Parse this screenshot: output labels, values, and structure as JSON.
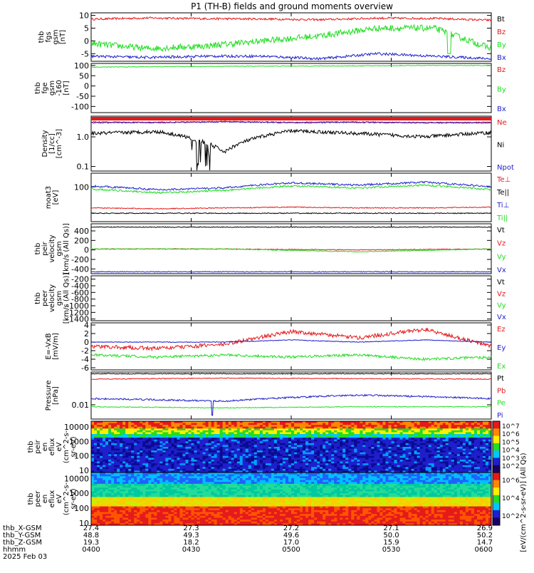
{
  "title": "P1 (TH-B) fields and ground moments overview",
  "colors": {
    "black": "#000000",
    "red": "#e41a1c",
    "green": "#22dd22",
    "blue": "#1f1fcc"
  },
  "chart_data": [
    {
      "type": "line",
      "ylabel": [
        "thb",
        "fgs",
        "gsm",
        "[nT]"
      ],
      "ylim": [
        -8,
        11
      ],
      "yticks": [
        "10",
        "5",
        "0",
        "-5"
      ],
      "yticks_values": [
        10,
        5,
        0,
        -5
      ],
      "series": [
        {
          "name": "Bt",
          "color": "#000000"
        },
        {
          "name": "Bz",
          "color": "#e41a1c",
          "values_approx": [
            8.5,
            9.0,
            8.7,
            8.6,
            8.3,
            8.9,
            8.8,
            8.1
          ]
        },
        {
          "name": "By",
          "color": "#22dd22",
          "values_approx": [
            -1,
            -3,
            -2,
            0,
            2,
            5,
            5,
            -3
          ]
        },
        {
          "name": "Bx",
          "color": "#1f1fcc",
          "values_approx": [
            -6,
            -6.5,
            -6,
            -6,
            -7,
            -5,
            -6,
            -7
          ]
        }
      ]
    },
    {
      "type": "line",
      "ylabel": [
        "thb",
        "fge",
        "gsm",
        "-160",
        "[nT]"
      ],
      "ylim": [
        -130,
        110
      ],
      "yticks": [
        "100",
        "50",
        "0",
        "-50",
        "-100"
      ],
      "yticks_values": [
        100,
        50,
        0,
        -50,
        -100
      ],
      "series": [
        {
          "name": "Bz",
          "color": "#e41a1c"
        },
        {
          "name": "By",
          "color": "#22dd22",
          "values_approx": [
            92,
            94,
            96,
            97,
            98,
            100,
            100
          ]
        },
        {
          "name": "Bx",
          "color": "#1f1fcc"
        }
      ]
    },
    {
      "type": "line",
      "yscale": "log",
      "ylabel": [
        "Density",
        "[1/cc]",
        "[cm^-3]"
      ],
      "ylim": [
        0.07,
        5
      ],
      "yticks": [
        "1.0",
        "0.1"
      ],
      "yticks_values": [
        1.0,
        0.1
      ],
      "series": [
        {
          "name": "Ne",
          "color": "#e41a1c",
          "values_approx": [
            3.2,
            3.0,
            3.3,
            3.1,
            3.2,
            3.0,
            3.1
          ]
        },
        {
          "name": "Ni",
          "color": "#000000",
          "values_approx": [
            1.3,
            1.5,
            0.3,
            1.6,
            1.3,
            1.0,
            1.4
          ]
        },
        {
          "name": "Npot",
          "color": "#1f1fcc",
          "values_approx": [
            3.0,
            3.1,
            3.2,
            3.0,
            3.1,
            3.0,
            3.0
          ]
        }
      ]
    },
    {
      "type": "line",
      "yscale": "log",
      "ylabel": [
        "moat3",
        "[eV]"
      ],
      "ylim": [
        3,
        400
      ],
      "yticks": [
        "100"
      ],
      "yticks_values": [
        100
      ],
      "series": [
        {
          "name": "Te⊥",
          "color": "#e41a1c",
          "values_approx": [
            12,
            11,
            12,
            13,
            12,
            12,
            13
          ]
        },
        {
          "name": "Te||",
          "color": "#000000",
          "values_approx": [
            7,
            7,
            7,
            7,
            7,
            7,
            7
          ]
        },
        {
          "name": "Ti⊥",
          "color": "#1f1fcc",
          "values_approx": [
            110,
            75,
            90,
            150,
            120,
            160,
            100
          ]
        },
        {
          "name": "Ti||",
          "color": "#22dd22",
          "values_approx": [
            80,
            55,
            70,
            110,
            90,
            120,
            75
          ]
        }
      ]
    },
    {
      "type": "line",
      "ylabel": [
        "thb",
        "peir",
        "velocity",
        "gsm",
        "[km/s (All Qs)]"
      ],
      "ylim": [
        -500,
        550
      ],
      "yticks": [
        "400",
        "200",
        "0",
        "-200",
        "-400"
      ],
      "yticks_values": [
        400,
        200,
        0,
        -200,
        -400
      ],
      "series": [
        {
          "name": "Vt",
          "color": "#000000",
          "values_approx": [
            480,
            480,
            480,
            480
          ]
        },
        {
          "name": "Vz",
          "color": "#e41a1c",
          "values_approx": [
            20,
            20,
            0,
            20
          ]
        },
        {
          "name": "Vy",
          "color": "#22dd22",
          "values_approx": [
            20,
            20,
            -40,
            20
          ]
        },
        {
          "name": "Vx",
          "color": "#1f1fcc",
          "values_approx": [
            -460,
            -460,
            -460,
            -460
          ]
        }
      ]
    },
    {
      "type": "line",
      "ylabel": [
        "thb",
        "peer",
        "velocity",
        "gsm",
        "[km/s (All Qs)]"
      ],
      "ylim": [
        -1450,
        -100
      ],
      "yticks": [
        "-200",
        "-400",
        "-600",
        "-800",
        "-1000",
        "-1200",
        "-1400"
      ],
      "yticks_values": [
        -200,
        -400,
        -600,
        -800,
        -1000,
        -1200,
        -1400
      ],
      "series": [
        {
          "name": "Vt",
          "color": "#000000"
        },
        {
          "name": "Vz",
          "color": "#e41a1c"
        },
        {
          "name": "Vy",
          "color": "#22dd22"
        },
        {
          "name": "Vx",
          "color": "#1f1fcc"
        }
      ]
    },
    {
      "type": "line",
      "ylabel": [
        "E=-VxB",
        "[mV/m]"
      ],
      "ylim": [
        -6.5,
        4.5
      ],
      "yticks": [
        "4",
        "2",
        "0",
        "-2",
        "-4",
        "-6"
      ],
      "yticks_values": [
        4,
        2,
        0,
        -2,
        -4,
        -6
      ],
      "series": [
        {
          "name": "Ez",
          "color": "#e41a1c",
          "values_approx": [
            -1,
            -1.5,
            -0.5,
            2.5,
            1,
            3,
            -1
          ]
        },
        {
          "name": "Ey",
          "color": "#1f1fcc",
          "values_approx": [
            0,
            0,
            0,
            0.5,
            0,
            0.5,
            0
          ]
        },
        {
          "name": "Ex",
          "color": "#22dd22",
          "values_approx": [
            -3,
            -3.5,
            -3,
            -3.5,
            -3,
            -4,
            -3.5
          ]
        }
      ]
    },
    {
      "type": "line",
      "yscale": "log",
      "ylabel": [
        "Pressure",
        "[nPa]"
      ],
      "ylim": [
        0.002,
        0.4
      ],
      "yticks": [
        "0.01"
      ],
      "yticks_values": [
        0.01
      ],
      "series": [
        {
          "name": "Pt",
          "color": "#000000",
          "values_approx": [
            0.33,
            0.33,
            0.33,
            0.33
          ]
        },
        {
          "name": "Pb",
          "color": "#e41a1c",
          "values_approx": [
            0.18,
            0.2,
            0.19,
            0.18
          ]
        },
        {
          "name": "Pe",
          "color": "#22dd22",
          "values_approx": [
            0.008,
            0.007,
            0.008,
            0.008
          ]
        },
        {
          "name": "Pi",
          "color": "#1f1fcc",
          "values_approx": [
            0.02,
            0.015,
            0.03,
            0.02
          ]
        }
      ]
    },
    {
      "type": "heatmap",
      "yscale": "log",
      "ylabel": [
        "thb",
        "peir",
        "en",
        "eflux",
        "eV",
        "(cm^2-s-",
        "sr-eV)"
      ],
      "ylim": [
        7,
        25000
      ],
      "yticks": [
        "10000",
        "1000",
        "100",
        "10"
      ],
      "yticks_values": [
        10000,
        1000,
        100,
        10
      ]
    },
    {
      "type": "heatmap",
      "yscale": "log",
      "ylabel": [
        "thb",
        "peer",
        "en",
        "eflux",
        "eV",
        "(cm^2-s-",
        "sr-eV)"
      ],
      "ylim": [
        7,
        25000
      ],
      "yticks": [
        "10000",
        "1000",
        "100",
        "10"
      ],
      "yticks_values": [
        10000,
        1000,
        100,
        10
      ]
    }
  ],
  "colorbar": {
    "label": "[eV/(cm^2-s-sr-eV)] (All Qs)",
    "ticks_top": [
      "10^7",
      "10^6",
      "10^5",
      "10^4",
      "10^3",
      "10^2"
    ],
    "ticks_bottom": [
      "10^6",
      "10^4",
      "10^2"
    ]
  },
  "x_axis": {
    "labels": [
      "thb_X-GSM",
      "thb_Y-GSM",
      "thb_Z-GSM",
      "hhmm",
      "2025 Feb 03"
    ],
    "columns": [
      {
        "x": "27.4",
        "y": "48.8",
        "z": "19.3",
        "t": "0400"
      },
      {
        "x": "27.3",
        "y": "49.3",
        "z": "18.2",
        "t": "0430"
      },
      {
        "x": "27.2",
        "y": "49.6",
        "z": "17.0",
        "t": "0500"
      },
      {
        "x": "27.1",
        "y": "50.0",
        "z": "15.9",
        "t": "0530"
      },
      {
        "x": "26.9",
        "y": "50.2",
        "z": "14.7",
        "t": "0600"
      }
    ]
  }
}
